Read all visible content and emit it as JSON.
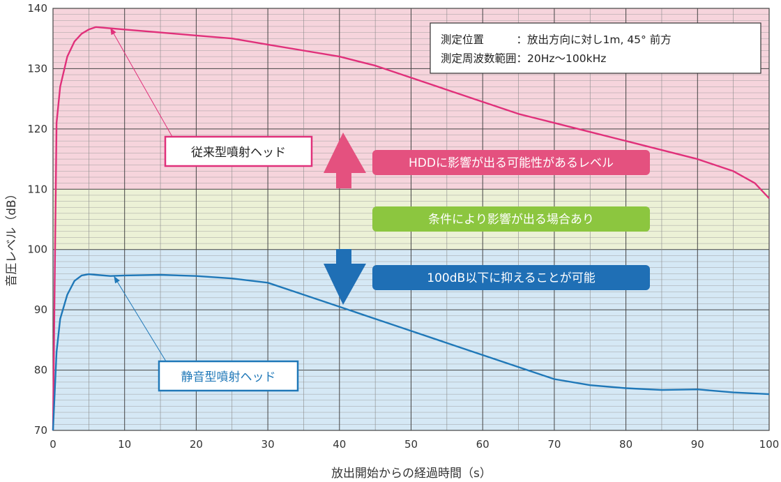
{
  "chart_data": {
    "type": "line",
    "xlabel": "放出開始からの経過時間（s）",
    "ylabel": "音圧レベル（dB）",
    "xlim": [
      0,
      100
    ],
    "ylim": [
      70,
      140
    ],
    "xticks": [
      0,
      10,
      20,
      30,
      40,
      50,
      60,
      70,
      80,
      90,
      100
    ],
    "yticks": [
      70,
      80,
      90,
      100,
      110,
      120,
      130,
      140
    ],
    "grid": true,
    "note": [
      "測定位置　　　：放出方向に対し1m, 45° 前方",
      "測定周波数範囲：20Hz〜100kHz"
    ],
    "zones": [
      {
        "from": 110,
        "to": 140,
        "color": "#f6d4dc",
        "label": "HDDに影響が出る可能性があるレベル",
        "label_color": "#e4517f"
      },
      {
        "from": 100,
        "to": 110,
        "color": "#ecf1d6",
        "label": "条件により影響が出る場合あり",
        "label_color": "#8cc63f"
      },
      {
        "from": 70,
        "to": 100,
        "color": "#d5e8f5",
        "label": "100dB以下に抑えることが可能",
        "label_color": "#1f6fb5"
      }
    ],
    "series": [
      {
        "name": "従来型噴射ヘッド",
        "color": "#e0307a",
        "x": [
          0,
          0.5,
          1,
          2,
          3,
          4,
          5,
          6,
          7,
          10,
          15,
          20,
          25,
          30,
          35,
          40,
          45,
          50,
          55,
          60,
          65,
          70,
          75,
          80,
          85,
          90,
          95,
          98,
          100
        ],
        "y": [
          70,
          121,
          127,
          132,
          134.5,
          135.8,
          136.5,
          136.9,
          136.8,
          136.5,
          136,
          135.5,
          135,
          134,
          133,
          132,
          130.5,
          128.5,
          126.5,
          124.5,
          122.5,
          121,
          119.5,
          118,
          116.5,
          115,
          113,
          111,
          108.5
        ]
      },
      {
        "name": "静音型噴射ヘッド",
        "color": "#1f78b8",
        "x": [
          0,
          0.5,
          1,
          2,
          3,
          4,
          5,
          6,
          8,
          10,
          15,
          20,
          25,
          30,
          35,
          40,
          45,
          50,
          55,
          60,
          65,
          70,
          75,
          80,
          85,
          90,
          95,
          100
        ],
        "y": [
          70,
          83,
          88.5,
          92.5,
          94.8,
          95.7,
          95.9,
          95.8,
          95.6,
          95.7,
          95.8,
          95.6,
          95.2,
          94.5,
          92.5,
          90.5,
          88.5,
          86.5,
          84.5,
          82.5,
          80.5,
          78.5,
          77.5,
          77,
          76.7,
          76.8,
          76.3,
          76
        ]
      }
    ],
    "annotations": [
      {
        "series": "従来型噴射ヘッド",
        "text": "従来型噴射ヘッド",
        "at_x": 8,
        "at_y": 136.8
      },
      {
        "series": "静音型噴射ヘッド",
        "text": "静音型噴射ヘッド",
        "at_x": 8.5,
        "at_y": 95.6
      }
    ]
  }
}
